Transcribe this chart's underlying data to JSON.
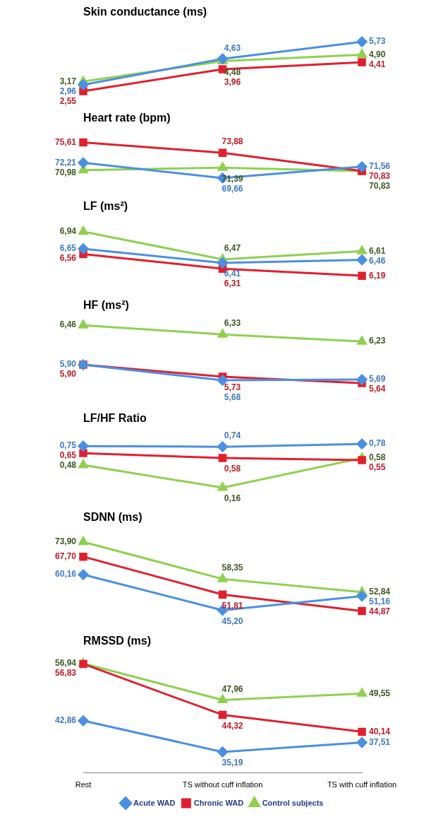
{
  "chart_data": [
    {
      "type": "line",
      "title": "Skin conductance (ms)",
      "categories": [
        null,
        null,
        null
      ],
      "tick_labels": false,
      "legend": false,
      "series": [
        {
          "color": "#4a90e2",
          "marker": "diamond",
          "values": [
            2.96,
            4.63,
            5.73
          ],
          "value_labels": [
            "2,96",
            "4,63",
            "5,73"
          ]
        },
        {
          "color": "#e0202e",
          "marker": "square",
          "values": [
            2.55,
            3.96,
            4.41
          ],
          "value_labels": [
            "2,55",
            "3,96",
            "4,41"
          ]
        },
        {
          "color": "#8fd14f",
          "marker": "triangle",
          "values": [
            3.17,
            4.48,
            4.9
          ],
          "value_labels": [
            "3,17",
            "4,48",
            "4,90"
          ]
        }
      ]
    },
    {
      "type": "line",
      "title": "Heart rate (bpm)",
      "categories": [
        null,
        null,
        null
      ],
      "tick_labels": false,
      "legend": false,
      "series": [
        {
          "color": "#4a90e2",
          "marker": "diamond",
          "values": [
            72.21,
            69.66,
            71.56
          ],
          "value_labels": [
            "72,21",
            "69,66",
            "71,56"
          ]
        },
        {
          "color": "#e0202e",
          "marker": "square",
          "values": [
            75.61,
            73.88,
            70.83
          ],
          "value_labels": [
            "75,61",
            "73,88",
            "70,83"
          ]
        },
        {
          "color": "#8fd14f",
          "marker": "triangle",
          "values": [
            70.98,
            71.39,
            70.83
          ],
          "value_labels": [
            "70,98",
            "71,39",
            "70,83"
          ]
        }
      ]
    },
    {
      "type": "line",
      "title": "LF (ms²)",
      "categories": [
        null,
        null,
        null
      ],
      "tick_labels": false,
      "legend": false,
      "series": [
        {
          "color": "#4a90e2",
          "marker": "diamond",
          "values": [
            6.65,
            6.41,
            6.46
          ],
          "value_labels": [
            "6,65",
            "6,41",
            "6,46"
          ]
        },
        {
          "color": "#e0202e",
          "marker": "square",
          "values": [
            6.56,
            6.31,
            6.19
          ],
          "value_labels": [
            "6,56",
            "6,31",
            "6,19"
          ]
        },
        {
          "color": "#8fd14f",
          "marker": "triangle",
          "values": [
            6.94,
            6.47,
            6.61
          ],
          "value_labels": [
            "6,94",
            "6,47",
            "6,61"
          ]
        }
      ]
    },
    {
      "type": "line",
      "title": "HF (ms²)",
      "categories": [
        null,
        null,
        null
      ],
      "tick_labels": false,
      "legend": false,
      "series": [
        {
          "color": "#4a90e2",
          "marker": "diamond",
          "values": [
            5.9,
            5.68,
            5.69
          ],
          "value_labels": [
            "5,90",
            "5,68",
            "5,69"
          ]
        },
        {
          "color": "#e0202e",
          "marker": "square",
          "values": [
            5.9,
            5.73,
            5.64
          ],
          "value_labels": [
            "5,90",
            "5,73",
            "5,64"
          ]
        },
        {
          "color": "#8fd14f",
          "marker": "triangle",
          "values": [
            6.46,
            6.33,
            6.23
          ],
          "value_labels": [
            "6,46",
            "6,33",
            "6,23"
          ]
        }
      ]
    },
    {
      "type": "line",
      "title": "LF/HF Ratio",
      "categories": [
        null,
        null,
        null
      ],
      "tick_labels": false,
      "legend": false,
      "series": [
        {
          "color": "#4a90e2",
          "marker": "diamond",
          "values": [
            0.75,
            0.74,
            0.78
          ],
          "value_labels": [
            "0,75",
            "0,74",
            "0,78"
          ]
        },
        {
          "color": "#e0202e",
          "marker": "square",
          "values": [
            0.65,
            0.58,
            0.55
          ],
          "value_labels": [
            "0,65",
            "0,58",
            "0,55"
          ]
        },
        {
          "color": "#8fd14f",
          "marker": "triangle",
          "values": [
            0.48,
            0.16,
            0.58
          ],
          "value_labels": [
            "0,48",
            "0,16",
            "0,58"
          ]
        }
      ]
    },
    {
      "type": "line",
      "title": "SDNN (ms)",
      "categories": [
        null,
        null,
        null
      ],
      "tick_labels": false,
      "legend": false,
      "series": [
        {
          "color": "#4a90e2",
          "marker": "diamond",
          "values": [
            60.16,
            45.2,
            51.16
          ],
          "value_labels": [
            "60,16",
            "45,20",
            "51,16"
          ]
        },
        {
          "color": "#e0202e",
          "marker": "square",
          "values": [
            67.7,
            51.81,
            44.87
          ],
          "value_labels": [
            "67,70",
            "51,81",
            "44,87"
          ]
        },
        {
          "color": "#8fd14f",
          "marker": "triangle",
          "values": [
            73.9,
            58.35,
            52.84
          ],
          "value_labels": [
            "73,90",
            "58,35",
            "52,84"
          ]
        }
      ]
    },
    {
      "type": "line",
      "title": "RMSSD (ms)",
      "categories": [
        "Rest",
        "TS without cuff inflation",
        "TS with cuff inflation"
      ],
      "tick_labels": "x",
      "legend": "bottom",
      "series": [
        {
          "name": "Acute WAD",
          "color": "#4a90e2",
          "marker": "diamond",
          "values": [
            42.86,
            35.19,
            37.51
          ],
          "value_labels": [
            "42,86",
            "35,19",
            "37,51"
          ]
        },
        {
          "name": "Chronic WAD",
          "color": "#e0202e",
          "marker": "square",
          "values": [
            56.83,
            44.32,
            40.14
          ],
          "value_labels": [
            "56,83",
            "44,32",
            "40,14"
          ]
        },
        {
          "name": "Control subjects",
          "color": "#8fd14f",
          "marker": "triangle",
          "values": [
            56.94,
            47.96,
            49.55
          ],
          "value_labels": [
            "56,94",
            "47,96",
            "49,55"
          ]
        }
      ]
    }
  ]
}
